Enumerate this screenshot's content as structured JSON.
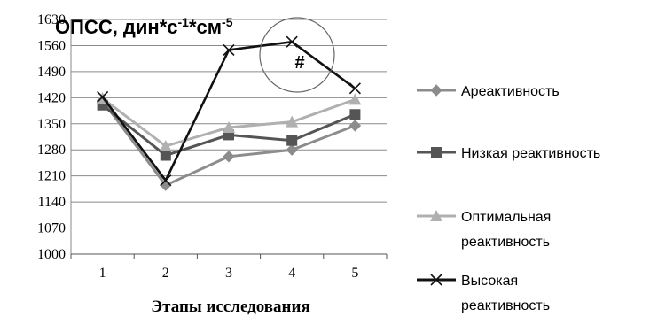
{
  "chart_data": {
    "type": "line",
    "title_main": "ОПСС, дин*с",
    "title_sup1": "-1",
    "title_mid": "*см",
    "title_sup2": "-5",
    "xlabel": "Этапы исследования",
    "ylabel": "",
    "categories": [
      "1",
      "2",
      "3",
      "4",
      "5"
    ],
    "ylim": [
      1000,
      1630
    ],
    "yticks": [
      1000,
      1070,
      1140,
      1210,
      1280,
      1350,
      1420,
      1490,
      1560,
      1630
    ],
    "grid": true,
    "legend_position": "right",
    "annotation": "#",
    "series": [
      {
        "name": "Ареактивность",
        "marker": "diamond",
        "color": "#8c8c8c",
        "values": [
          1412,
          1185,
          1262,
          1280,
          1345
        ]
      },
      {
        "name": "Низкая реактивность",
        "marker": "square",
        "color": "#555555",
        "values": [
          1400,
          1265,
          1320,
          1305,
          1375
        ]
      },
      {
        "name": "Оптимальная реактивность",
        "marker": "triangle",
        "color": "#b0b0b0",
        "values": [
          1418,
          1290,
          1340,
          1355,
          1415
        ]
      },
      {
        "name": "Высокая реактивность",
        "marker": "x",
        "color": "#111111",
        "values": [
          1422,
          1198,
          1548,
          1570,
          1445
        ]
      }
    ],
    "legend_lines": [
      [
        "Ареактивность"
      ],
      [
        "Низкая реактивность"
      ],
      [
        "Оптимальная",
        "реактивность"
      ],
      [
        "Высокая",
        "реактивность"
      ]
    ]
  }
}
